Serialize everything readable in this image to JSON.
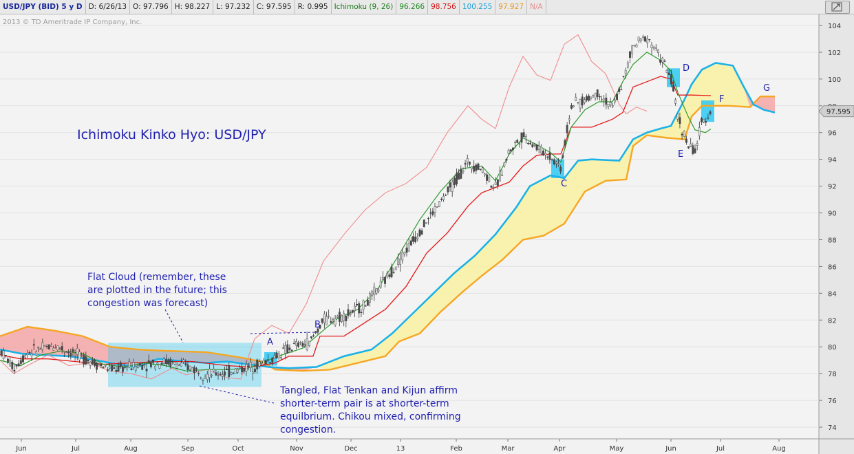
{
  "header": {
    "symbol": "USD/JPY (BID) 5 y D",
    "date": "D: 6/26/13",
    "open": "O: 97.796",
    "high": "H: 98.227",
    "low": "L: 97.232",
    "close": "C: 97.595",
    "range": "R: 0.995",
    "ichimoku_label": "Ichimoku (9, 26)",
    "ichi_tenkan_value": "96.266",
    "ichi_kijun_value": "98.756",
    "ichi_span_a_value": "100.255",
    "ichi_span_b_value": "97.927",
    "ichi_chikou_value": "N/A"
  },
  "copyright": "2013 © TD Ameritrade IP Company, Inc.",
  "chart_data": {
    "type": "candlestick",
    "title": "Ichimoku Kinko Hyo: USD/JPY",
    "y_ticks": [
      74,
      76,
      78,
      80,
      82,
      84,
      86,
      88,
      90,
      92,
      94,
      96,
      98,
      100,
      102,
      104
    ],
    "ylim": [
      73.2,
      105.2
    ],
    "x_ticks": [
      "Jun",
      "Jul",
      "Aug",
      "Sep",
      "Oct",
      "Nov",
      "Dec",
      "13",
      "Feb",
      "Mar",
      "Apr",
      "May",
      "Jun",
      "Jul",
      "Aug"
    ],
    "last_price_label": "97.595",
    "colors": {
      "tenkan": "#2e9a2e",
      "kijun": "#e31818",
      "span_a": "#1ab2e8",
      "span_b": "#f5a623",
      "chikou": "#f08c8c",
      "cloud_bull": "#f8f2a6",
      "cloud_bear": "#f4a6a6",
      "annotation": "#1f1fb0",
      "highlight": "#2fc8f2"
    },
    "annotations": [
      {
        "id": "A",
        "text": "A"
      },
      {
        "id": "B",
        "text": "B"
      },
      {
        "id": "C",
        "text": "C"
      },
      {
        "id": "D",
        "text": "D"
      },
      {
        "id": "E",
        "text": "E"
      },
      {
        "id": "F",
        "text": "F"
      },
      {
        "id": "G",
        "text": "G"
      }
    ],
    "notes": {
      "flat_cloud": [
        "Flat Cloud (remember, these",
        "are plotted in the future; this",
        "congestion was forecast)"
      ],
      "tangled": [
        "Tangled, Flat Tenkan and Kijun affirm",
        "shorter-term pair is at shorter-term",
        "equilbrium.  Chikou mixed, confirming",
        "congestion."
      ]
    }
  }
}
